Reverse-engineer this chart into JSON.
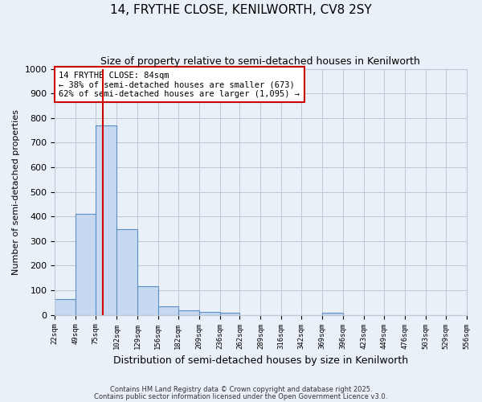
{
  "title": "14, FRYTHE CLOSE, KENILWORTH, CV8 2SY",
  "subtitle": "Size of property relative to semi-detached houses in Kenilworth",
  "xlabel": "Distribution of semi-detached houses by size in Kenilworth",
  "ylabel": "Number of semi-detached properties",
  "bin_edges": [
    22,
    49,
    75,
    102,
    129,
    156,
    182,
    209,
    236,
    262,
    289,
    316,
    342,
    369,
    396,
    423,
    449,
    476,
    503,
    529,
    556
  ],
  "bar_heights": [
    65,
    410,
    770,
    350,
    115,
    35,
    20,
    13,
    8,
    0,
    0,
    0,
    0,
    8,
    0,
    0,
    0,
    0,
    0,
    0
  ],
  "bar_color": "#c6d9f0",
  "bar_edge_color": "#5a8fc2",
  "grid_color": "#c0c8d8",
  "background_color": "#eaf0f8",
  "vline_x": 84,
  "vline_color": "#cc0000",
  "annotation_text": "14 FRYTHE CLOSE: 84sqm\n← 38% of semi-detached houses are smaller (673)\n62% of semi-detached houses are larger (1,095) →",
  "annotation_box_color": "#ffffff",
  "annotation_box_edge_color": "#cc0000",
  "ylim": [
    0,
    1000
  ],
  "yticks": [
    0,
    100,
    200,
    300,
    400,
    500,
    600,
    700,
    800,
    900,
    1000
  ],
  "footer_line1": "Contains HM Land Registry data © Crown copyright and database right 2025.",
  "footer_line2": "Contains public sector information licensed under the Open Government Licence v3.0."
}
